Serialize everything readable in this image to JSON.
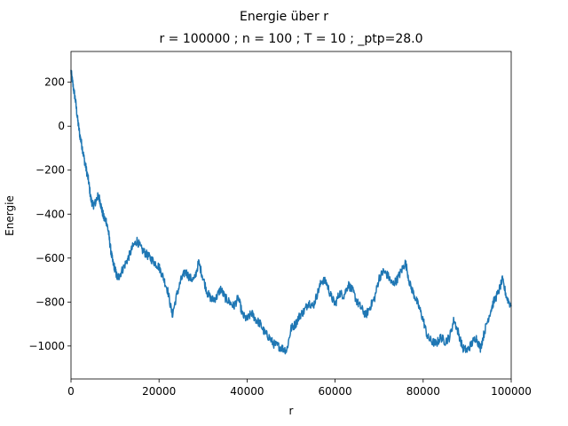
{
  "chart_data": {
    "type": "line",
    "title": "Energie über r",
    "subtitle": "r = 100000 ; n = 100 ; T = 10 ; _ptp=28.0",
    "xlabel": "r",
    "ylabel": "Energie",
    "xlim": [
      0,
      100000
    ],
    "ylim": [
      -1150,
      340
    ],
    "x_ticks": [
      0,
      20000,
      40000,
      60000,
      80000,
      100000
    ],
    "x_tick_labels": [
      "0",
      "20000",
      "40000",
      "60000",
      "80000",
      "100000"
    ],
    "y_ticks": [
      200,
      0,
      -200,
      -400,
      -600,
      -800,
      -1000
    ],
    "y_tick_labels": [
      "200",
      "0",
      "−200",
      "−400",
      "−600",
      "−800",
      "−1000"
    ],
    "grid": false,
    "series_color": "#1f77b4",
    "series": [
      {
        "x": [
          0,
          500,
          1000,
          1500,
          2000,
          2500,
          3000,
          3500,
          4000,
          4500,
          5000,
          5500,
          6000,
          6500,
          7000,
          7500,
          8000,
          8500,
          9000,
          9500,
          10000,
          10500,
          11000,
          12000,
          13000,
          14000,
          15000,
          16000,
          17000,
          18000,
          19000,
          20000,
          21000,
          22000,
          23000,
          24000,
          25000,
          26000,
          27000,
          28000,
          29000,
          30000,
          31000,
          32000,
          33000,
          34000,
          35000,
          36000,
          37000,
          38000,
          39000,
          40000,
          41000,
          42000,
          43000,
          44000,
          45000,
          46000,
          47000,
          48000,
          49000,
          50000,
          51000,
          52000,
          53000,
          54000,
          55000,
          56000,
          57000,
          58000,
          59000,
          60000,
          61000,
          62000,
          63000,
          64000,
          65000,
          66000,
          67000,
          68000,
          69000,
          70000,
          71000,
          72000,
          73000,
          74000,
          75000,
          76000,
          77000,
          78000,
          79000,
          80000,
          81000,
          82000,
          83000,
          84000,
          85000,
          86000,
          87000,
          88000,
          89000,
          90000,
          91000,
          92000,
          93000,
          94000,
          95000,
          96000,
          97000,
          98000,
          99000,
          100000
        ],
        "y": [
          250,
          180,
          120,
          30,
          -40,
          -90,
          -150,
          -200,
          -250,
          -330,
          -360,
          -350,
          -320,
          -330,
          -380,
          -420,
          -430,
          -480,
          -560,
          -620,
          -650,
          -690,
          -680,
          -640,
          -600,
          -550,
          -520,
          -560,
          -580,
          -600,
          -620,
          -640,
          -690,
          -750,
          -860,
          -770,
          -700,
          -660,
          -690,
          -700,
          -620,
          -690,
          -760,
          -790,
          -780,
          -740,
          -780,
          -800,
          -820,
          -780,
          -860,
          -880,
          -850,
          -880,
          -900,
          -940,
          -960,
          -990,
          -1000,
          -1010,
          -1020,
          -920,
          -900,
          -860,
          -840,
          -800,
          -820,
          -760,
          -700,
          -710,
          -770,
          -810,
          -760,
          -770,
          -720,
          -750,
          -800,
          -830,
          -860,
          -820,
          -780,
          -690,
          -660,
          -680,
          -720,
          -700,
          -660,
          -620,
          -720,
          -770,
          -820,
          -880,
          -960,
          -980,
          -990,
          -960,
          -980,
          -960,
          -880,
          -940,
          -1010,
          -1020,
          -990,
          -960,
          -1010,
          -930,
          -860,
          -800,
          -760,
          -700,
          -780,
          -820
        ]
      }
    ]
  }
}
